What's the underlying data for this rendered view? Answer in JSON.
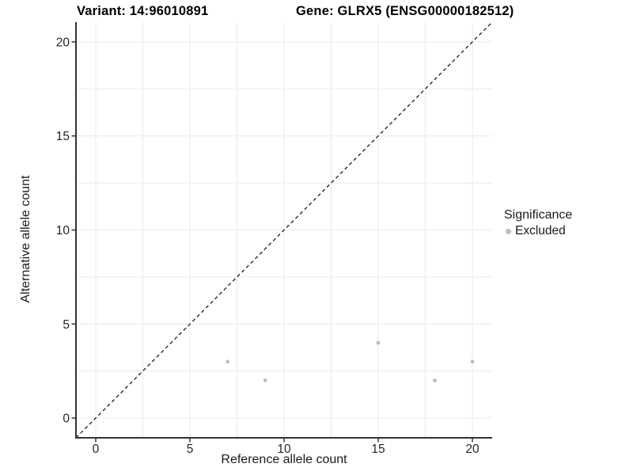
{
  "chart_data": {
    "type": "scatter",
    "titles": {
      "variant": "Variant: 14:96010891",
      "gene": "Gene: GLRX5 (ENSG00000182512)"
    },
    "xlabel": "Reference allele count",
    "ylabel": "Alternative allele count",
    "xlim": [
      -1.05,
      21.05
    ],
    "ylim": [
      -1.05,
      21.05
    ],
    "xticks": [
      0,
      5,
      10,
      15,
      20
    ],
    "yticks": [
      0,
      5,
      10,
      15,
      20
    ],
    "grid": true,
    "grid_step": 2.5,
    "grid_range": [
      0,
      20
    ],
    "identity_line": {
      "type": "abline",
      "slope": 1,
      "intercept": 0,
      "style": "dashed"
    },
    "series": [
      {
        "name": "Excluded",
        "color": "#bdbdbd",
        "points": [
          [
            7,
            3
          ],
          [
            9,
            2
          ],
          [
            15,
            4
          ],
          [
            18,
            2
          ],
          [
            20,
            3
          ]
        ]
      }
    ],
    "legend": {
      "title": "Significance",
      "position": "right",
      "items": [
        {
          "label": "Excluded",
          "color": "#bdbdbd"
        }
      ]
    },
    "colors": {
      "background": "#ffffff",
      "grid": "#e9e9e9",
      "axis": "#333333",
      "tick_label": "#262626",
      "identity_line": "#1a1a1a",
      "point": "#bdbdbd"
    }
  }
}
